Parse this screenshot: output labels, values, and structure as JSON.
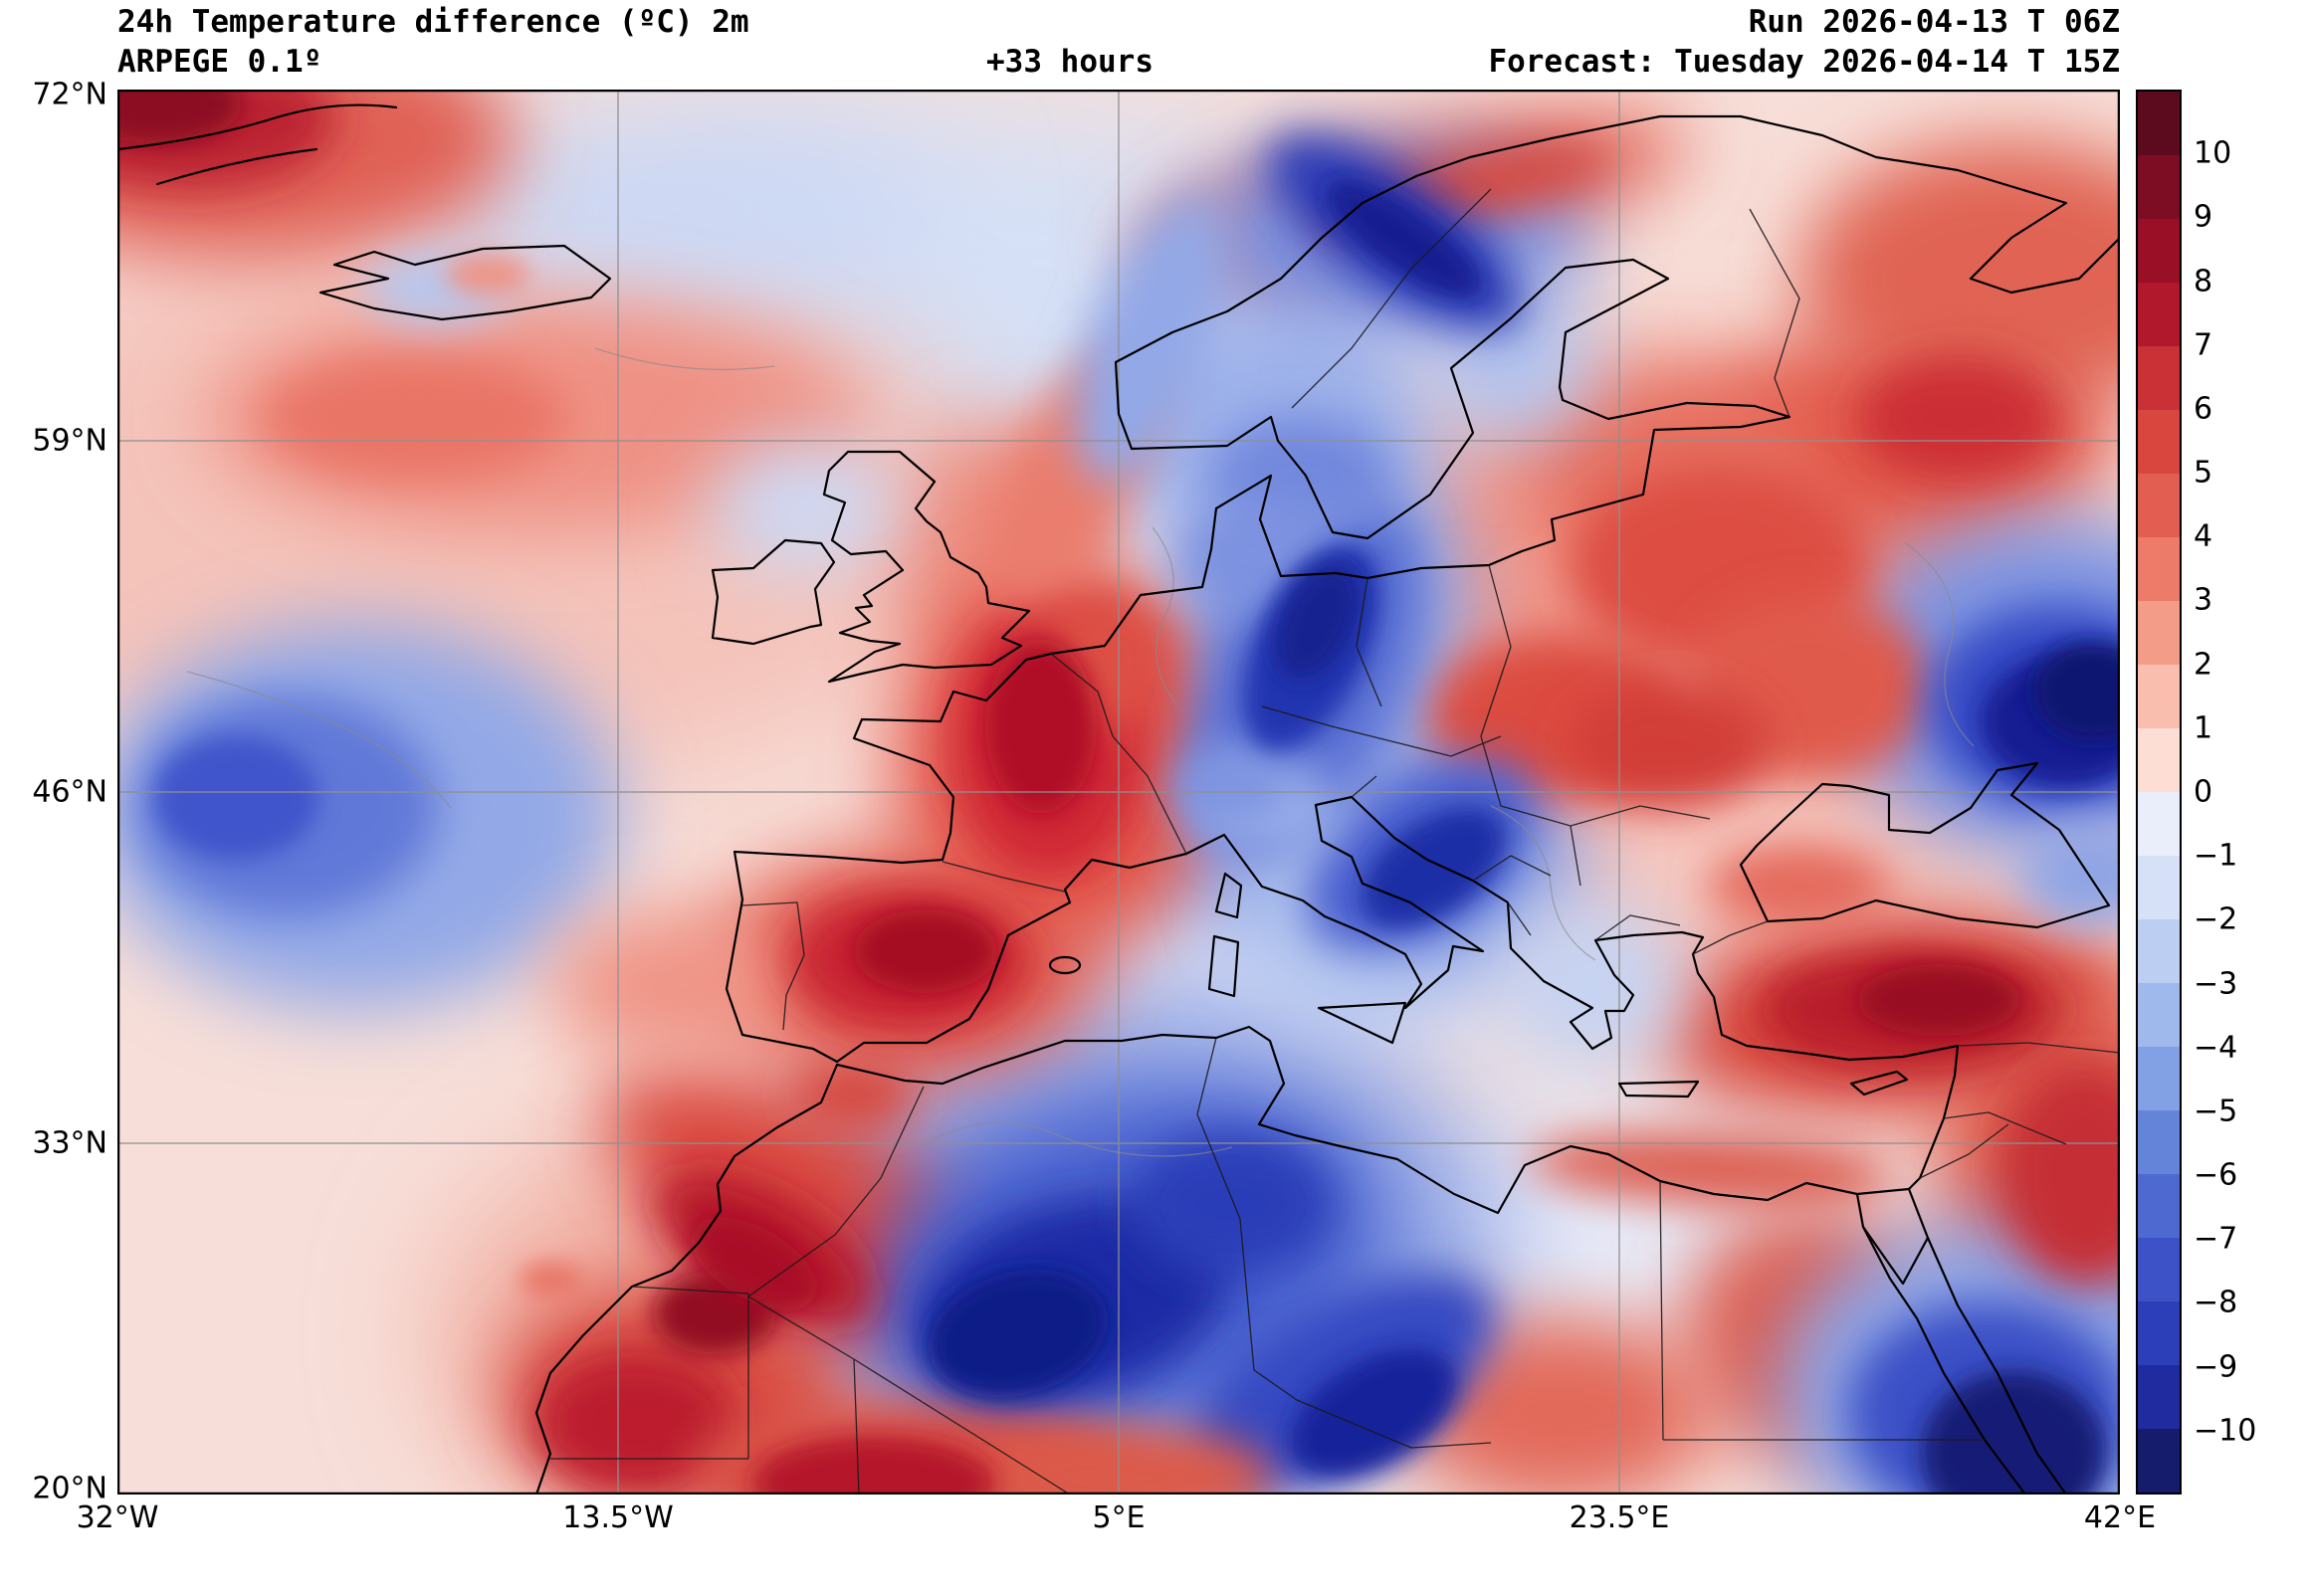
{
  "header": {
    "title": "24h Temperature difference (ºC) 2m",
    "model": "ARPEGE 0.1º",
    "lead_time": "+33 hours",
    "run": "Run 2026-04-13 T 06Z",
    "forecast": "Forecast: Tuesday 2026-04-14 T 15Z"
  },
  "axes": {
    "lat_ticks": [
      "72°N",
      "59°N",
      "46°N",
      "33°N",
      "20°N"
    ],
    "lon_ticks": [
      "32°W",
      "13.5°W",
      "5°E",
      "23.5°E",
      "42°E"
    ]
  },
  "colorbar": {
    "unit": "ºC",
    "tick_labels": [
      "10",
      "9",
      "8",
      "7",
      "6",
      "5",
      "4",
      "3",
      "2",
      "1",
      "0",
      "−1",
      "−2",
      "−3",
      "−4",
      "−5",
      "−6",
      "−7",
      "−8",
      "−9",
      "−10"
    ],
    "colors_top_to_bottom": [
      "#5c0a1e",
      "#7d0d22",
      "#990f26",
      "#b2182b",
      "#c93136",
      "#d8463e",
      "#e25e50",
      "#ec7c69",
      "#f39d88",
      "#f9bead",
      "#fcded4",
      "#e9eefa",
      "#d6e1f7",
      "#bccff2",
      "#a0b9ec",
      "#82a0e4",
      "#6484da",
      "#4e6ad0",
      "#3c52c6",
      "#2c3eb8",
      "#1f2b9e",
      "#141c6b"
    ]
  }
}
